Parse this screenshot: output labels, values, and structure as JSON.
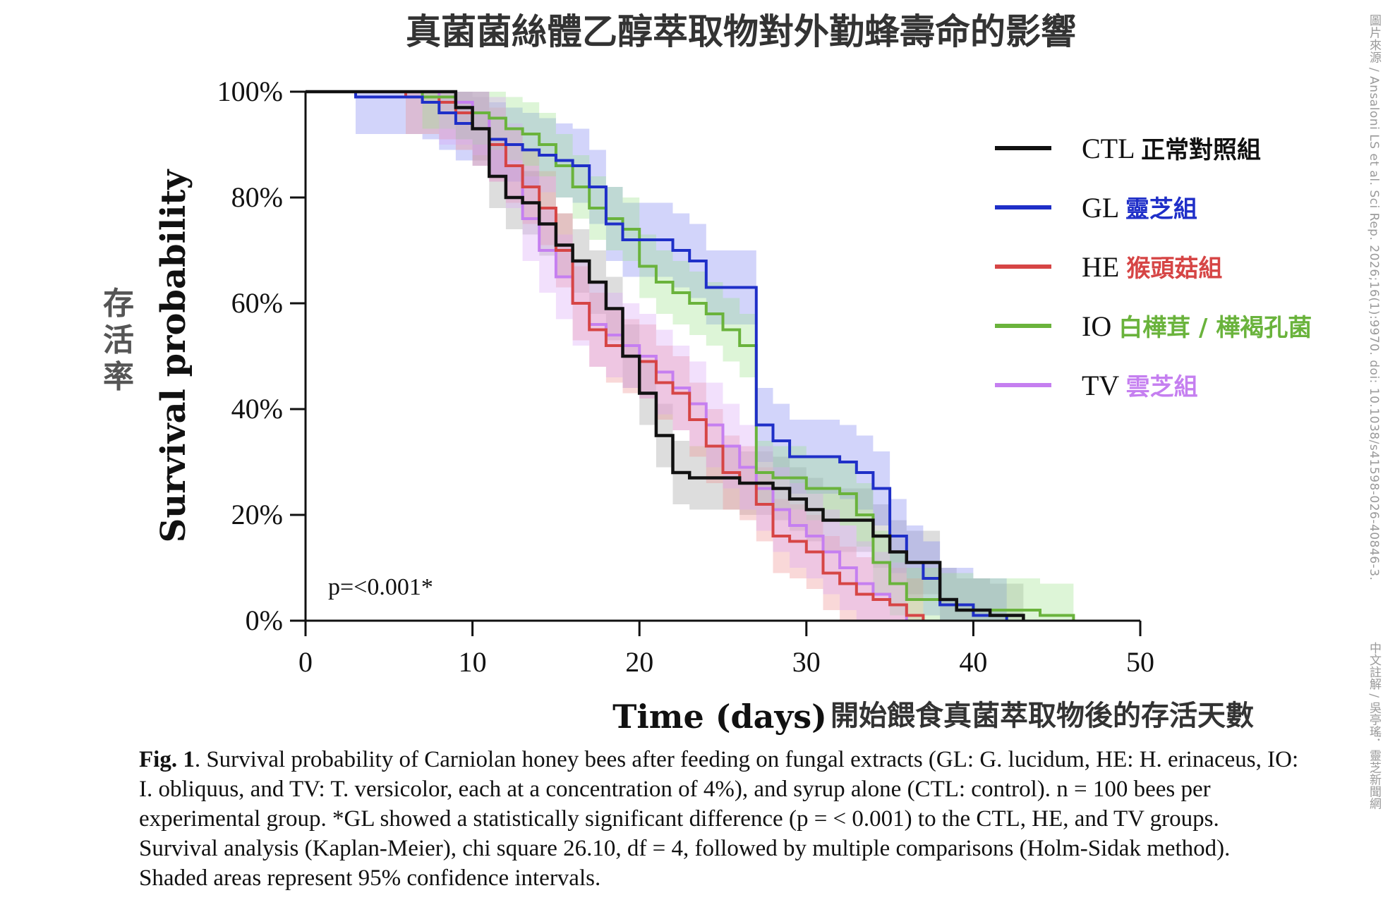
{
  "chart_data": {
    "type": "line",
    "title": "真菌菌絲體乙醇萃取物對外勤蜂壽命的影響",
    "xlabel": "Time (days)",
    "xlabel_zh": "開始餵食真菌萃取物後的存活天數",
    "ylabel": "Survival probability",
    "ylabel_zh": "存活率",
    "xlim": [
      0,
      50
    ],
    "ylim": [
      0,
      100
    ],
    "x_ticks": [
      "0",
      "10",
      "20",
      "30",
      "40",
      "50"
    ],
    "y_ticks": [
      "0%",
      "20%",
      "40%",
      "60%",
      "80%",
      "100%"
    ],
    "annotation": "p=<0.001*",
    "legend_position": "top-right",
    "series": [
      {
        "name": "CTL",
        "label_zh": "正常對照組",
        "color": "#111111",
        "band_color": "#9e9e9e",
        "x": [
          0,
          9,
          10,
          11,
          12,
          13,
          14,
          15,
          16,
          17,
          18,
          19,
          20,
          21,
          22,
          23,
          24,
          25,
          26,
          27,
          28,
          29,
          30,
          31,
          32,
          34,
          35,
          36,
          38,
          39,
          41,
          43
        ],
        "y": [
          100,
          97,
          93,
          84,
          80,
          79,
          75,
          71,
          68,
          64,
          59,
          50,
          43,
          35,
          28,
          27,
          27,
          27,
          26,
          26,
          25,
          23,
          21,
          19,
          19,
          16,
          13,
          11,
          4,
          2,
          1,
          0
        ]
      },
      {
        "name": "GL",
        "label_zh": "靈芝組",
        "color": "#1f2fc8",
        "band_color": "#7f84f0",
        "x": [
          0,
          3,
          7,
          8,
          9,
          10,
          11,
          12,
          13,
          14,
          15,
          16,
          17,
          18,
          19,
          20,
          22,
          23,
          24,
          25,
          26,
          27,
          28,
          29,
          30,
          31,
          32,
          33,
          34,
          35,
          36,
          37,
          38,
          40,
          42
        ],
        "y": [
          100,
          99,
          98,
          96,
          94,
          93,
          91,
          90,
          89,
          88,
          87,
          86,
          82,
          75,
          72,
          72,
          70,
          68,
          63,
          63,
          63,
          37,
          34,
          31,
          31,
          31,
          30,
          28,
          25,
          16,
          11,
          8,
          3,
          1,
          0
        ]
      },
      {
        "name": "HE",
        "label_zh": "猴頭菇組",
        "color": "#d64545",
        "band_color": "#ef8f8f",
        "x": [
          0,
          6,
          8,
          9,
          10,
          11,
          12,
          13,
          14,
          15,
          16,
          17,
          18,
          19,
          20,
          21,
          22,
          23,
          24,
          25,
          26,
          27,
          28,
          29,
          30,
          31,
          32,
          33,
          34,
          35,
          36,
          37
        ],
        "y": [
          100,
          99,
          98,
          96,
          93,
          90,
          86,
          82,
          78,
          70,
          60,
          55,
          52,
          50,
          49,
          45,
          43,
          38,
          33,
          28,
          26,
          22,
          16,
          15,
          13,
          9,
          7,
          5,
          4,
          3,
          1,
          0
        ]
      },
      {
        "name": "IO",
        "label_zh": "白樺茸 / 樺褐孔菌",
        "color": "#6ab33c",
        "band_color": "#9de38c",
        "x": [
          0,
          7,
          9,
          10,
          11,
          12,
          13,
          14,
          15,
          16,
          17,
          18,
          19,
          20,
          21,
          22,
          23,
          24,
          25,
          26,
          27,
          28,
          30,
          32,
          33,
          34,
          35,
          36,
          38,
          40,
          44,
          46
        ],
        "y": [
          100,
          99,
          97,
          96,
          95,
          93,
          92,
          90,
          86,
          82,
          78,
          76,
          74,
          67,
          64,
          62,
          60,
          58,
          55,
          52,
          28,
          27,
          25,
          24,
          20,
          11,
          7,
          4,
          3,
          2,
          1,
          0
        ]
      },
      {
        "name": "TV",
        "label_zh": "雲芝組",
        "color": "#c57ff0",
        "band_color": "#d9a7f7",
        "x": [
          0,
          8,
          10,
          11,
          12,
          13,
          14,
          15,
          16,
          17,
          18,
          19,
          20,
          21,
          22,
          23,
          24,
          25,
          26,
          27,
          28,
          29,
          30,
          31,
          32,
          33,
          34,
          35,
          36
        ],
        "y": [
          100,
          98,
          96,
          91,
          86,
          76,
          70,
          65,
          60,
          56,
          54,
          52,
          50,
          47,
          44,
          41,
          37,
          33,
          29,
          25,
          21,
          18,
          16,
          13,
          10,
          7,
          5,
          3,
          0
        ]
      }
    ]
  },
  "caption": {
    "fig_label": "Fig. 1",
    "text": ". Survival probability of Carniolan honey bees after feeding on fungal extracts (GL: G. lucidum, HE: H. erinaceus, IO: I. obliquus, and TV: T. versicolor, each at a concentration of 4%), and syrup alone (CTL: control). n = 100 bees per experimental group. *GL showed a statistically significant difference (p = < 0.001) to the CTL, HE, and TV groups. Survival analysis (Kaplan-Meier), chi square 26.10, df = 4, followed by multiple comparisons (Holm-Sidak method). Shaded areas represent 95% confidence intervals."
  },
  "credits": {
    "source": "圖片來源 / Ansaloni LS et al. Sci Rep. 2026;16(1):9970. doi: 10.1038/s41598-026-40846-3.",
    "annotation_by": "中文註解 / 吳亭瑤．靈芝新聞網"
  }
}
